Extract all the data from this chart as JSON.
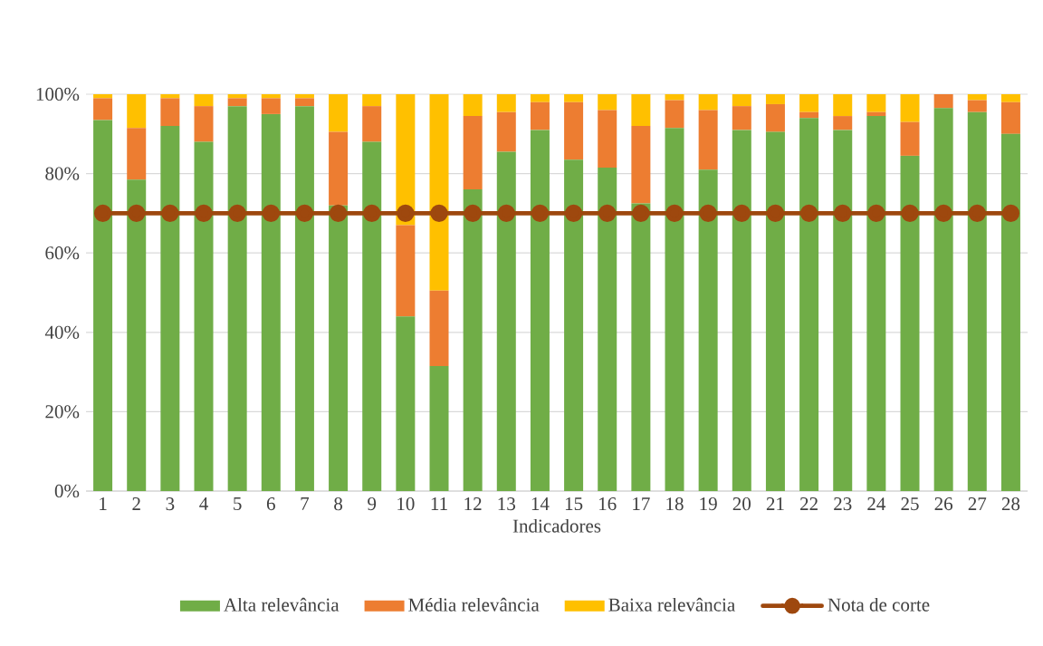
{
  "chart_data": {
    "type": "bar",
    "stacked": true,
    "xlabel": "Indicadores",
    "categories": [
      "1",
      "2",
      "3",
      "4",
      "5",
      "6",
      "7",
      "8",
      "9",
      "10",
      "11",
      "12",
      "13",
      "14",
      "15",
      "16",
      "17",
      "18",
      "19",
      "20",
      "21",
      "22",
      "23",
      "24",
      "25",
      "26",
      "27",
      "28"
    ],
    "series": [
      {
        "name": "Alta relevância",
        "color": "#70ad47",
        "values": [
          93.5,
          78.5,
          92,
          88,
          97,
          95,
          97,
          72,
          88,
          44,
          31.5,
          76,
          85.5,
          91,
          83.5,
          81.5,
          72.5,
          91.5,
          81,
          91,
          90.5,
          94,
          91,
          94.5,
          84.5,
          96.5,
          95.5,
          90
        ]
      },
      {
        "name": "Média relevância",
        "color": "#ed7d31",
        "values": [
          5.5,
          13,
          7,
          9,
          2,
          4,
          2,
          18.5,
          9,
          23,
          19,
          18.5,
          10,
          7,
          14.5,
          14.5,
          19.5,
          7,
          15,
          6,
          7,
          1.5,
          3.5,
          1,
          8.5,
          3.5,
          3,
          8
        ]
      },
      {
        "name": "Baixa relevância",
        "color": "#ffc000",
        "values": [
          1,
          8.5,
          1,
          3,
          1,
          1,
          1,
          9.5,
          3,
          33,
          49.5,
          5.5,
          4.5,
          2,
          2,
          4,
          8,
          1.5,
          4,
          3,
          2.5,
          4.5,
          5.5,
          4.5,
          7,
          0,
          1.5,
          2
        ]
      },
      {
        "name": "Nota de corte",
        "type": "line",
        "color": "#9e480e",
        "marker": "circle",
        "line_style": "solid",
        "values": [
          70,
          70,
          70,
          70,
          70,
          70,
          70,
          70,
          70,
          70,
          70,
          70,
          70,
          70,
          70,
          70,
          70,
          70,
          70,
          70,
          70,
          70,
          70,
          70,
          70,
          70,
          70,
          70
        ]
      }
    ],
    "ylim": [
      0,
      100
    ],
    "yticks": [
      {
        "value": 0,
        "label": "0%"
      },
      {
        "value": 20,
        "label": "20%"
      },
      {
        "value": 40,
        "label": "40%"
      },
      {
        "value": 60,
        "label": "60%"
      },
      {
        "value": 80,
        "label": "80%"
      },
      {
        "value": 100,
        "label": "100%"
      }
    ],
    "grid": "y",
    "legend": "bottom"
  }
}
